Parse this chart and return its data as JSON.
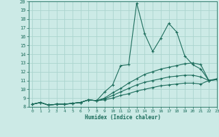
{
  "bg_color": "#cceae6",
  "grid_color": "#aad4ce",
  "line_color": "#1a6b5a",
  "marker": "+",
  "xlabel": "Humidex (Indice chaleur)",
  "xlim": [
    -0.5,
    23
  ],
  "ylim": [
    8,
    20
  ],
  "xticks": [
    0,
    1,
    2,
    3,
    4,
    5,
    6,
    7,
    8,
    9,
    10,
    11,
    12,
    13,
    14,
    15,
    16,
    17,
    18,
    19,
    20,
    21,
    22,
    23
  ],
  "yticks": [
    8,
    9,
    10,
    11,
    12,
    13,
    14,
    15,
    16,
    17,
    18,
    19,
    20
  ],
  "series": [
    {
      "x": [
        0,
        1,
        2,
        3,
        4,
        5,
        6,
        7,
        8,
        9,
        10,
        11,
        12,
        13,
        14,
        15,
        16,
        17,
        18,
        19,
        20,
        21,
        22,
        23
      ],
      "y": [
        8.3,
        8.5,
        8.2,
        8.3,
        8.3,
        8.4,
        8.5,
        8.8,
        8.7,
        9.7,
        10.5,
        12.7,
        12.8,
        19.8,
        16.3,
        14.3,
        15.8,
        17.5,
        16.5,
        13.8,
        12.8,
        12.3,
        11.0,
        11.2
      ]
    },
    {
      "x": [
        0,
        1,
        2,
        3,
        4,
        5,
        6,
        7,
        8,
        9,
        10,
        11,
        12,
        13,
        14,
        15,
        16,
        17,
        18,
        19,
        20,
        21,
        22,
        23
      ],
      "y": [
        8.3,
        8.5,
        8.2,
        8.3,
        8.3,
        8.4,
        8.5,
        8.8,
        8.7,
        9.0,
        9.6,
        10.1,
        10.7,
        11.2,
        11.7,
        12.0,
        12.3,
        12.5,
        12.7,
        12.9,
        13.0,
        12.8,
        11.0,
        11.1
      ]
    },
    {
      "x": [
        0,
        1,
        2,
        3,
        4,
        5,
        6,
        7,
        8,
        9,
        10,
        11,
        12,
        13,
        14,
        15,
        16,
        17,
        18,
        19,
        20,
        21,
        22,
        23
      ],
      "y": [
        8.3,
        8.5,
        8.2,
        8.3,
        8.3,
        8.4,
        8.5,
        8.8,
        8.7,
        8.9,
        9.3,
        9.7,
        10.1,
        10.5,
        10.8,
        11.0,
        11.2,
        11.4,
        11.5,
        11.6,
        11.6,
        11.4,
        11.0,
        11.1
      ]
    },
    {
      "x": [
        0,
        1,
        2,
        3,
        4,
        5,
        6,
        7,
        8,
        9,
        10,
        11,
        12,
        13,
        14,
        15,
        16,
        17,
        18,
        19,
        20,
        21,
        22,
        23
      ],
      "y": [
        8.3,
        8.5,
        8.2,
        8.3,
        8.3,
        8.4,
        8.5,
        8.8,
        8.7,
        8.8,
        9.0,
        9.3,
        9.5,
        9.8,
        10.0,
        10.2,
        10.4,
        10.5,
        10.6,
        10.7,
        10.7,
        10.6,
        11.0,
        11.1
      ]
    }
  ]
}
